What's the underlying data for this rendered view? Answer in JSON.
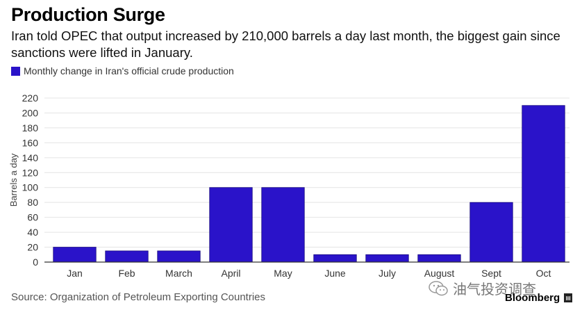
{
  "title": "Production Surge",
  "subtitle": "Iran told OPEC that output increased by 210,000 barrels a day last month, the biggest gain since sanctions were lifted in January.",
  "source": "Source: Organization of Petroleum Exporting Countries",
  "brand": "Bloomberg",
  "watermark": "油气投资调查",
  "colors": {
    "bar": "#2a13c9",
    "grid": "#e4e4e4",
    "axis": "#333333"
  },
  "chart_data": {
    "type": "bar",
    "categories": [
      "Jan",
      "Feb",
      "March",
      "April",
      "May",
      "June",
      "July",
      "August",
      "Sept",
      "Oct"
    ],
    "series": [
      {
        "name": "Monthly change in Iran's official crude production",
        "values": [
          20,
          15,
          15,
          100,
          100,
          10,
          10,
          10,
          80,
          210
        ]
      }
    ],
    "ylabel": "Barrels a day",
    "xlabel": "",
    "ylim": [
      0,
      220
    ],
    "yticks": [
      0,
      20,
      40,
      60,
      80,
      100,
      120,
      140,
      160,
      180,
      200,
      220
    ],
    "grid": true,
    "legend": "top-left"
  }
}
